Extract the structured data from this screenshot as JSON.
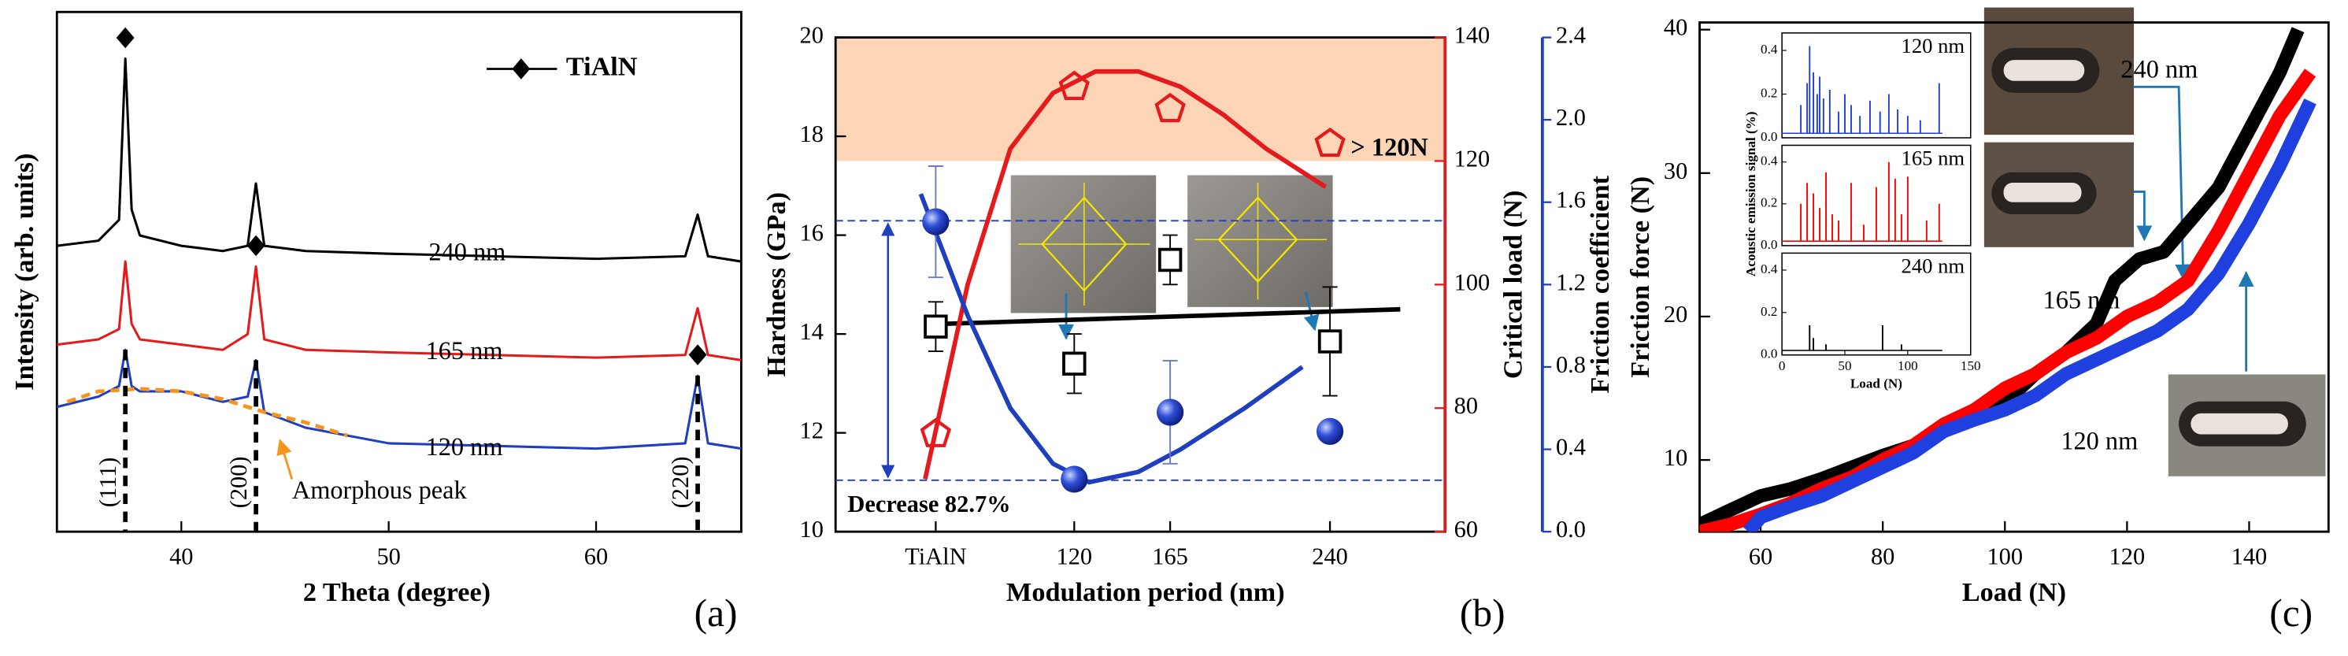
{
  "chart_data": [
    {
      "type": "line",
      "panel_label": "(a)",
      "xlabel": "2 Theta (degree)",
      "ylabel": "Intensity (arb. units)",
      "xlim": [
        34,
        67
      ],
      "xticks": [
        40,
        50,
        60
      ],
      "ylim": [
        0,
        100
      ],
      "legend": "TiAlN",
      "x": [
        34,
        36,
        37,
        37.3,
        37.6,
        38,
        40,
        42,
        43.2,
        43.6,
        44,
        46,
        50,
        55,
        60,
        64.3,
        64.9,
        65.4,
        67
      ],
      "series": [
        {
          "name": "240 nm",
          "color": "#000000",
          "values": [
            55,
            56,
            60,
            91,
            62,
            57,
            55,
            54,
            55,
            67,
            55,
            54,
            53.5,
            53,
            52.5,
            53,
            61,
            53,
            52
          ]
        },
        {
          "name": "165 nm",
          "color": "#e41a1c",
          "values": [
            36,
            37,
            39,
            52,
            40,
            37,
            36,
            35,
            38,
            51,
            37,
            35,
            34.5,
            34,
            33.5,
            34,
            43,
            34,
            33
          ]
        },
        {
          "name": "120 nm",
          "color": "#1f3fbf",
          "values": [
            24,
            26,
            28,
            35,
            28,
            27,
            27,
            25,
            26,
            33,
            23,
            20,
            17,
            16.5,
            16,
            17,
            30,
            17,
            16
          ]
        }
      ],
      "amorphous": {
        "name": "Amorphous peak",
        "color": "#f7941d",
        "x": [
          34.5,
          36,
          38,
          40,
          42,
          44,
          46,
          48
        ],
        "values": [
          25,
          27,
          27.5,
          27,
          25.5,
          23,
          21,
          18.5
        ]
      },
      "peaks": [
        {
          "label": "(111)",
          "x": 37.3
        },
        {
          "label": "(200)",
          "x": 43.6
        },
        {
          "label": "(220)",
          "x": 64.9
        }
      ]
    },
    {
      "type": "scatter",
      "panel_label": "(b)",
      "xlabel": "Modulation period (nm)",
      "xlim": [
        8,
        294
      ],
      "xticks": [
        {
          "value": 55,
          "label": "TiAlN"
        },
        120,
        165,
        240
      ],
      "ylabel": "Hardness (GPa)",
      "ylim": [
        10,
        20
      ],
      "yticks": [
        10,
        12,
        14,
        16,
        18,
        20
      ],
      "y2label": "Critical load (N)",
      "y2lim": [
        60,
        140
      ],
      "y2ticks": [
        60,
        80,
        100,
        120,
        140
      ],
      "y3label": "Friction coefficient",
      "y3lim": [
        0,
        2.4
      ],
      "y3ticks": [
        {
          "value": 0,
          "label": "0.0"
        },
        {
          "value": 0.4,
          "label": "0.4"
        },
        {
          "value": 0.8,
          "label": "0.8"
        },
        {
          "value": 1.2,
          "label": "1.2"
        },
        {
          "value": 1.6,
          "label": "1.6"
        },
        {
          "value": 2.0,
          "label": "2.0"
        },
        {
          "value": 2.4,
          "label": "2.4"
        }
      ],
      "band": {
        "axis": "y2",
        "range": [
          120,
          140
        ],
        "color": "#fbd5b5",
        "label": "> 120N"
      },
      "reference_lines": {
        "axis": "y3",
        "values": [
          1.51,
          0.25
        ],
        "color": "#1f3fbf",
        "label": "Decrease 82.7%"
      },
      "series": [
        {
          "axis": "y",
          "color": "#000000",
          "marker": "square",
          "x": [
            55,
            120,
            165,
            240
          ],
          "values": [
            14.15,
            13.4,
            15.5,
            13.85
          ],
          "errors": [
            0.5,
            0.6,
            0.5,
            1.1
          ],
          "fit": {
            "x": [
              55,
              273
            ],
            "values": [
              14.2,
              14.5
            ]
          }
        },
        {
          "axis": "y2",
          "color": "#e41a1c",
          "marker": "pentagon",
          "x": [
            55,
            120,
            165,
            240
          ],
          "values": [
            75.8,
            132,
            128.4,
            122.8
          ],
          "errors": [
            null,
            null,
            null,
            null
          ],
          "fit": {
            "x": [
              50,
              70,
              90,
              110,
              130,
              150,
              170,
              190,
              210,
              238
            ],
            "values": [
              68.5,
              100,
              122,
              131,
              134.5,
              134.5,
              132,
              127.5,
              122,
              115.8
            ]
          }
        },
        {
          "axis": "y3",
          "color": "#1f3fbf",
          "marker": "sphere",
          "x": [
            55,
            120,
            165,
            240
          ],
          "values": [
            1.505,
            0.255,
            0.58,
            0.487
          ],
          "errors": [
            0.27,
            null,
            0.25,
            null
          ],
          "fit": {
            "x": [
              48,
              70,
              90,
              110,
              127,
              150,
              170,
              200,
              227
            ],
            "values": [
              1.64,
              1.05,
              0.6,
              0.33,
              0.24,
              0.29,
              0.4,
              0.6,
              0.8
            ]
          }
        }
      ]
    },
    {
      "type": "line",
      "panel_label": "(c)",
      "xlabel": "Load (N)",
      "ylabel": "Friction force (N)",
      "xlim": [
        50,
        153
      ],
      "xticks": [
        60,
        80,
        100,
        120,
        140
      ],
      "ylim": [
        5,
        40.5
      ],
      "yticks": [
        10,
        20,
        30,
        40
      ],
      "series": [
        {
          "name": "240 nm",
          "color": "#000000",
          "x": [
            50,
            55,
            60,
            65,
            70,
            75,
            80,
            85,
            90,
            95,
            100,
            105,
            110,
            115,
            118,
            122,
            126,
            130,
            135,
            140,
            145,
            148
          ],
          "values": [
            5.5,
            6.5,
            7.5,
            8,
            8.7,
            9.5,
            10.3,
            11,
            12,
            13,
            14,
            16,
            17.5,
            19.5,
            22.5,
            24,
            24.5,
            26.5,
            29,
            33,
            37,
            40
          ]
        },
        {
          "name": "165 nm",
          "color": "#ff0000",
          "x": [
            50,
            55,
            60,
            65,
            70,
            75,
            80,
            85,
            90,
            95,
            100,
            105,
            110,
            115,
            120,
            125,
            130,
            135,
            140,
            145,
            150
          ],
          "values": [
            5,
            5.5,
            6.2,
            7,
            8,
            8.8,
            10,
            11,
            12.5,
            13.5,
            15,
            16,
            17.5,
            18.5,
            20,
            21,
            22.5,
            26,
            30,
            34,
            37
          ]
        },
        {
          "name": "120 nm",
          "color": "#1f3fdf",
          "x": [
            58,
            60,
            65,
            70,
            75,
            80,
            85,
            90,
            95,
            100,
            105,
            110,
            115,
            120,
            125,
            130,
            135,
            140,
            145,
            150
          ],
          "values": [
            5,
            6,
            6.8,
            7.5,
            8.5,
            9.5,
            10.5,
            12,
            12.8,
            13.5,
            14.5,
            16,
            17,
            18,
            19,
            20.5,
            23,
            26.5,
            30.5,
            35
          ]
        }
      ],
      "inset": {
        "xlabel": "Load (N)",
        "ylabel": "Acoustic emission signal (%)",
        "xlim": [
          0,
          150
        ],
        "xticks": [
          0,
          50,
          100,
          150
        ],
        "ylim": [
          0,
          0.48
        ],
        "yticks": [
          {
            "value": 0,
            "label": "0.0"
          },
          {
            "value": 0.2,
            "label": "0.2"
          },
          {
            "value": 0.4,
            "label": "0.4"
          }
        ],
        "series": [
          {
            "name": "120 nm",
            "color": "#1f3fdf",
            "x": [
              15,
              20,
              22,
              25,
              28,
              30,
              33,
              38,
              45,
              50,
              55,
              62,
              70,
              78,
              85,
              92,
              100,
              110,
              125
            ],
            "values": [
              0.15,
              0.25,
              0.42,
              0.3,
              0.2,
              0.28,
              0.18,
              0.22,
              0.12,
              0.2,
              0.15,
              0.1,
              0.17,
              0.12,
              0.2,
              0.13,
              0.1,
              0.08,
              0.25
            ]
          },
          {
            "name": "165 nm",
            "color": "#ff0000",
            "x": [
              15,
              20,
              25,
              30,
              35,
              40,
              45,
              55,
              65,
              75,
              85,
              90,
              95,
              100,
              115,
              125
            ],
            "values": [
              0.2,
              0.3,
              0.25,
              0.18,
              0.35,
              0.15,
              0.12,
              0.3,
              0.1,
              0.28,
              0.4,
              0.32,
              0.15,
              0.33,
              0.12,
              0.2
            ]
          },
          {
            "name": "240 nm",
            "color": "#000000",
            "x": [
              22,
              25,
              35,
              80,
              95
            ],
            "values": [
              0.14,
              0.08,
              0.05,
              0.14,
              0.05
            ]
          }
        ]
      }
    }
  ]
}
